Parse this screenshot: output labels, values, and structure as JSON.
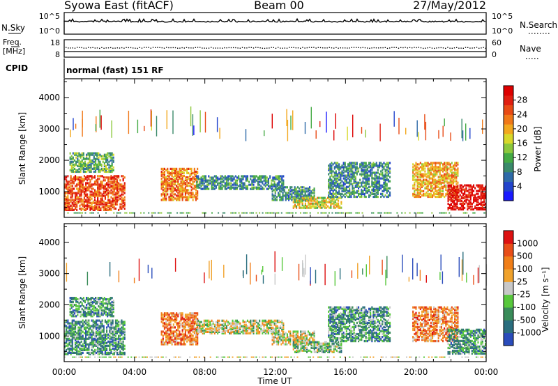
{
  "header": {
    "station": "Syowa East (fitACF)",
    "beam": "Beam 00",
    "date": "27/May/2012"
  },
  "nsky_panel": {
    "left_label": "N.Sky",
    "left_ticks": [
      "10^5",
      "10^0"
    ],
    "right_ticks": [
      "10^5",
      "10^0"
    ],
    "right_label": "N.Search"
  },
  "freq_panel": {
    "left_label_1": "Freq.",
    "left_label_2": "[MHz]",
    "left_ticks": [
      "18",
      "8"
    ],
    "right_ticks": [
      "60",
      "0"
    ],
    "right_label": "Nave"
  },
  "cpid_panel": {
    "label": "CPID",
    "mode": "normal (fast) 151 RF"
  },
  "chart_data": [
    {
      "type": "heatmap",
      "quantity": "Power",
      "xlabel": "",
      "ylabel": "Slant Range [km]",
      "x_range_hours": [
        0,
        24
      ],
      "ylim": [
        180,
        4600
      ],
      "y_ticks": [
        "1000",
        "2000",
        "3000",
        "4000"
      ],
      "colorbar": {
        "label": "Power [dB]",
        "ticks": [
          "28",
          "24",
          "20",
          "16",
          "12",
          "8",
          "4"
        ],
        "colors": [
          "#1a1aff",
          "#2244cc",
          "#2e6aa8",
          "#3a8a6a",
          "#44aa44",
          "#8cc83c",
          "#d8d82a",
          "#f2a81e",
          "#f07818",
          "#e84a14",
          "#e01e10",
          "#dd0000"
        ]
      },
      "echo_regions": [
        {
          "t_start": 0.0,
          "t_end": 3.4,
          "r_low": 380,
          "r_high": 1500,
          "level": 9
        },
        {
          "t_start": 0.3,
          "t_end": 2.8,
          "r_low": 1600,
          "r_high": 2200,
          "level": 4
        },
        {
          "t_start": 5.5,
          "t_end": 7.6,
          "r_low": 700,
          "r_high": 1700,
          "level": 8
        },
        {
          "t_start": 7.5,
          "t_end": 12.5,
          "r_low": 1050,
          "r_high": 1500,
          "level": 3
        },
        {
          "t_start": 11.8,
          "t_end": 14.2,
          "r_low": 700,
          "r_high": 1150,
          "level": 3
        },
        {
          "t_start": 13.0,
          "t_end": 15.8,
          "r_low": 450,
          "r_high": 800,
          "level": 6
        },
        {
          "t_start": 15.0,
          "t_end": 18.5,
          "r_low": 800,
          "r_high": 1900,
          "level": 3
        },
        {
          "t_start": 19.8,
          "t_end": 22.4,
          "r_low": 800,
          "r_high": 1900,
          "level": 7
        },
        {
          "t_start": 21.8,
          "t_end": 24.0,
          "r_low": 400,
          "r_high": 1200,
          "level": 11
        }
      ],
      "sparse_columns_range_km": [
        2600,
        3400
      ]
    },
    {
      "type": "heatmap",
      "quantity": "Velocity",
      "xlabel": "Time UT",
      "ylabel": "Slant Range [km]",
      "x_ticks": [
        "00:00",
        "04:00",
        "08:00",
        "12:00",
        "16:00",
        "20:00",
        "00:00"
      ],
      "x_range_hours": [
        0,
        24
      ],
      "ylim": [
        180,
        4600
      ],
      "y_ticks": [
        "1000",
        "2000",
        "3000",
        "4000"
      ],
      "colorbar": {
        "label": "Velocity [m s⁻¹]",
        "ticks": [
          "1000",
          "500",
          "100",
          "25",
          "-25",
          "-100",
          "-500",
          "-1000"
        ],
        "colors": [
          "#2a4cbb",
          "#2a6e7e",
          "#3a8c5a",
          "#58c83c",
          "#c8c8c8",
          "#f0a22c",
          "#f07e18",
          "#e84e18",
          "#dd1111"
        ]
      },
      "echo_regions": [
        {
          "t_start": 0.0,
          "t_end": 3.4,
          "r_low": 380,
          "r_high": 1500,
          "level": 2
        },
        {
          "t_start": 0.3,
          "t_end": 2.8,
          "r_low": 1600,
          "r_high": 2200,
          "level": 2
        },
        {
          "t_start": 5.5,
          "t_end": 7.6,
          "r_low": 700,
          "r_high": 1700,
          "level": 6
        },
        {
          "t_start": 7.5,
          "t_end": 12.5,
          "r_low": 1050,
          "r_high": 1500,
          "level": 4
        },
        {
          "t_start": 11.8,
          "t_end": 14.2,
          "r_low": 700,
          "r_high": 1150,
          "level": 4
        },
        {
          "t_start": 13.0,
          "t_end": 15.8,
          "r_low": 450,
          "r_high": 800,
          "level": 3
        },
        {
          "t_start": 15.0,
          "t_end": 18.5,
          "r_low": 800,
          "r_high": 1900,
          "level": 2
        },
        {
          "t_start": 19.8,
          "t_end": 22.4,
          "r_low": 800,
          "r_high": 1900,
          "level": 6
        },
        {
          "t_start": 21.8,
          "t_end": 24.0,
          "r_low": 400,
          "r_high": 1200,
          "level": 2
        }
      ],
      "sparse_columns_range_km": [
        2600,
        3400
      ]
    }
  ]
}
